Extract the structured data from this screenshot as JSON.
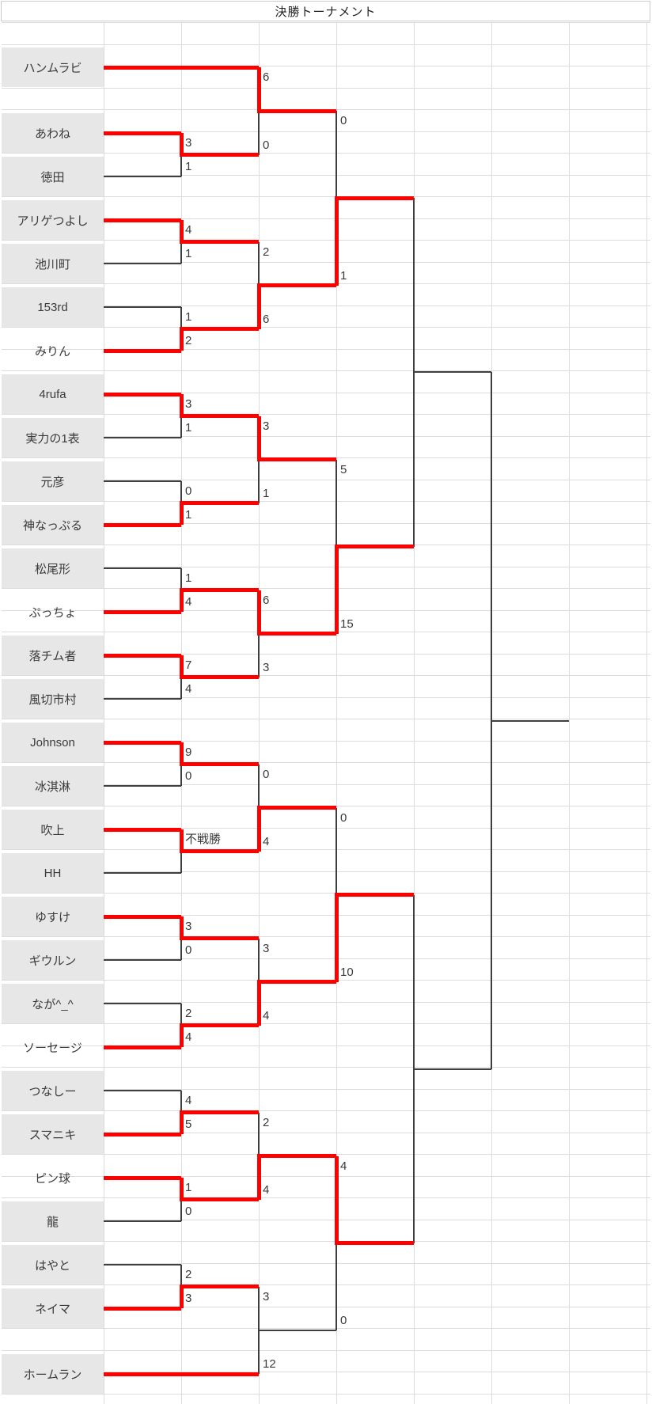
{
  "title": "決勝トーナメント",
  "colors": {
    "winner_path": "#fe0000",
    "bracket_line": "#3f3f3f",
    "grid_line": "#dcdcdc",
    "name_cell_bg": "#e7e7e7",
    "text": "#3a3a3a"
  },
  "players": [
    {
      "name": "ハンムラビ",
      "shaded": true,
      "bye": true
    },
    {
      "name": "あわね",
      "shaded": true,
      "bye": false
    },
    {
      "name": "徳田",
      "shaded": true,
      "bye": false
    },
    {
      "name": "アリゲつよし",
      "shaded": true,
      "bye": false
    },
    {
      "name": "池川町",
      "shaded": true,
      "bye": false
    },
    {
      "name": "153rd",
      "shaded": true,
      "bye": false
    },
    {
      "name": "みりん",
      "shaded": false,
      "bye": false
    },
    {
      "name": "4rufa",
      "shaded": true,
      "bye": false
    },
    {
      "name": "実力の1表",
      "shaded": true,
      "bye": false
    },
    {
      "name": "元彦",
      "shaded": true,
      "bye": false
    },
    {
      "name": "神なっぷる",
      "shaded": true,
      "bye": false
    },
    {
      "name": "松尾形",
      "shaded": true,
      "bye": false
    },
    {
      "name": "ぷっちょ",
      "shaded": false,
      "bye": false
    },
    {
      "name": "落チム者",
      "shaded": true,
      "bye": false
    },
    {
      "name": "風切市村",
      "shaded": true,
      "bye": false
    },
    {
      "name": "Johnson",
      "shaded": true,
      "bye": false
    },
    {
      "name": "冰淇淋",
      "shaded": true,
      "bye": false
    },
    {
      "name": "吹上",
      "shaded": true,
      "bye": false
    },
    {
      "name": "HH",
      "shaded": true,
      "bye": false
    },
    {
      "name": "ゆすけ",
      "shaded": true,
      "bye": false
    },
    {
      "name": "ギウルン",
      "shaded": true,
      "bye": false
    },
    {
      "name": "なが^_^",
      "shaded": true,
      "bye": false
    },
    {
      "name": "ソーセージ",
      "shaded": false,
      "bye": false
    },
    {
      "name": "つなしー",
      "shaded": true,
      "bye": false
    },
    {
      "name": "スマニキ",
      "shaded": true,
      "bye": false
    },
    {
      "name": "ピン球",
      "shaded": false,
      "bye": false
    },
    {
      "name": "龍",
      "shaded": true,
      "bye": false
    },
    {
      "name": "はやと",
      "shaded": true,
      "bye": false
    },
    {
      "name": "ネイマ",
      "shaded": true,
      "bye": false
    },
    {
      "name": "ホームラン",
      "shaded": true,
      "bye": true
    }
  ],
  "chart_data": {
    "type": "table",
    "title": "決勝トーナメント",
    "structure": "single-elimination bracket, 30 entrants, byes for ハンムラビ and ホームラン",
    "round1": [
      {
        "top": "あわね",
        "top_score": "3",
        "bottom": "徳田",
        "bottom_score": "1",
        "winner": "top"
      },
      {
        "top": "アリゲつよし",
        "top_score": "4",
        "bottom": "池川町",
        "bottom_score": "1",
        "winner": "top"
      },
      {
        "top": "153rd",
        "top_score": "1",
        "bottom": "みりん",
        "bottom_score": "2",
        "winner": "bottom"
      },
      {
        "top": "4rufa",
        "top_score": "3",
        "bottom": "実力の1表",
        "bottom_score": "1",
        "winner": "top"
      },
      {
        "top": "元彦",
        "top_score": "0",
        "bottom": "神なっぷる",
        "bottom_score": "1",
        "winner": "bottom"
      },
      {
        "top": "松尾形",
        "top_score": "1",
        "bottom": "ぷっちょ",
        "bottom_score": "4",
        "winner": "bottom"
      },
      {
        "top": "落チム者",
        "top_score": "7",
        "bottom": "風切市村",
        "bottom_score": "4",
        "winner": "top"
      },
      {
        "top": "Johnson",
        "top_score": "9",
        "bottom": "冰淇淋",
        "bottom_score": "0",
        "winner": "top"
      },
      {
        "top": "吹上",
        "top_score": "不戦勝",
        "bottom": "HH",
        "bottom_score": "",
        "winner": "top",
        "walkover": true
      },
      {
        "top": "ゆすけ",
        "top_score": "3",
        "bottom": "ギウルン",
        "bottom_score": "0",
        "winner": "top"
      },
      {
        "top": "なが^_^",
        "top_score": "2",
        "bottom": "ソーセージ",
        "bottom_score": "4",
        "winner": "bottom"
      },
      {
        "top": "つなしー",
        "top_score": "4",
        "bottom": "スマニキ",
        "bottom_score": "5",
        "winner": "bottom"
      },
      {
        "top": "ピン球",
        "top_score": "1",
        "bottom": "龍",
        "bottom_score": "0",
        "winner": "top"
      },
      {
        "top": "はやと",
        "top_score": "2",
        "bottom": "ネイマ",
        "bottom_score": "3",
        "winner": "bottom"
      }
    ],
    "round2": [
      {
        "top": "ハンムラビ",
        "top_score": "6",
        "bottom": "あわね",
        "bottom_score": "0",
        "winner": "top"
      },
      {
        "top": "アリゲつよし",
        "top_score": "2",
        "bottom": "みりん",
        "bottom_score": "6",
        "winner": "bottom"
      },
      {
        "top": "4rufa",
        "top_score": "3",
        "bottom": "神なっぷる",
        "bottom_score": "1",
        "winner": "top"
      },
      {
        "top": "ぷっちょ",
        "top_score": "6",
        "bottom": "落チム者",
        "bottom_score": "3",
        "winner": "top"
      },
      {
        "top": "Johnson",
        "top_score": "0",
        "bottom": "吹上",
        "bottom_score": "4",
        "winner": "bottom"
      },
      {
        "top": "ゆすけ",
        "top_score": "3",
        "bottom": "ソーセージ",
        "bottom_score": "4",
        "winner": "bottom"
      },
      {
        "top": "スマニキ",
        "top_score": "2",
        "bottom": "ピン球",
        "bottom_score": "4",
        "winner": "bottom"
      },
      {
        "top": "ネイマ",
        "top_score": "3",
        "bottom": "ホームラン",
        "bottom_score": "12",
        "winner": "bottom",
        "winner_marked": false
      }
    ],
    "quarterfinals": [
      {
        "top": "ハンムラビ",
        "top_score": "0",
        "bottom": "みりん",
        "bottom_score": "1",
        "winner": "bottom"
      },
      {
        "top": "4rufa",
        "top_score": "5",
        "bottom": "ぷっちょ",
        "bottom_score": "15",
        "winner": "bottom"
      },
      {
        "top": "吹上",
        "top_score": "0",
        "bottom": "ソーセージ",
        "bottom_score": "10",
        "winner": "bottom"
      },
      {
        "top": "ピン球",
        "top_score": "4",
        "bottom": "ホームラン",
        "bottom_score": "0",
        "winner": "top"
      }
    ],
    "semifinals": [
      {
        "top": "みりん",
        "top_score": "",
        "bottom": "ぷっちょ",
        "bottom_score": "",
        "winner": null
      },
      {
        "top": "ソーセージ",
        "top_score": "",
        "bottom": "ピン球",
        "bottom_score": "",
        "winner": null
      }
    ],
    "final": {
      "top": "",
      "top_score": "",
      "bottom": "",
      "bottom_score": "",
      "winner": null
    }
  }
}
